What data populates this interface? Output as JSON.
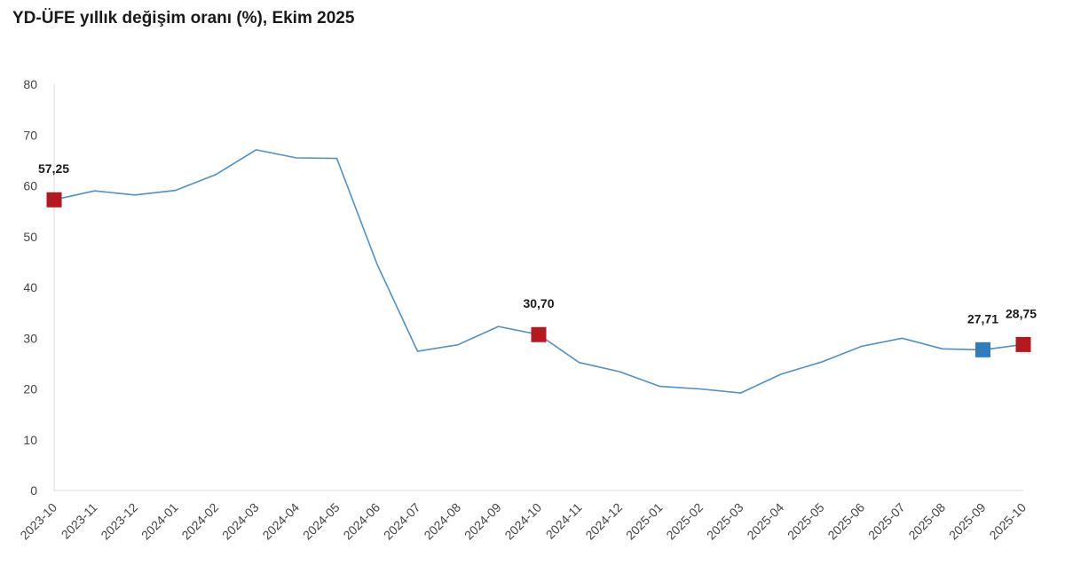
{
  "title": "YD-ÜFE yıllık değişim oranı (%), Ekim 2025",
  "chart_data": {
    "type": "line",
    "title": "YD-ÜFE yıllık değişim oranı (%), Ekim 2025",
    "xlabel": "",
    "ylabel": "",
    "ylim": [
      0,
      80
    ],
    "yticks": [
      0,
      10,
      20,
      30,
      40,
      50,
      60,
      70,
      80
    ],
    "grid": false,
    "legend": "none",
    "categories": [
      "2023-10",
      "2023-11",
      "2023-12",
      "2024-01",
      "2024-02",
      "2024-03",
      "2024-04",
      "2024-05",
      "2024-06",
      "2024-07",
      "2024-08",
      "2024-09",
      "2024-10",
      "2024-11",
      "2024-12",
      "2025-01",
      "2025-02",
      "2025-03",
      "2025-04",
      "2025-05",
      "2025-06",
      "2025-07",
      "2025-08",
      "2025-09",
      "2025-10"
    ],
    "series": [
      {
        "values": [
          57.25,
          59.0,
          58.2,
          59.1,
          62.2,
          67.1,
          65.5,
          65.4,
          44.5,
          27.4,
          28.7,
          32.3,
          30.7,
          25.2,
          23.4,
          20.5,
          20.0,
          19.2,
          22.9,
          25.3,
          28.4,
          30.0,
          27.9,
          27.71,
          28.75
        ],
        "color": "#4f91c8"
      }
    ],
    "markers": [
      {
        "index": 0,
        "label": "57,25",
        "color": "#b5191f"
      },
      {
        "index": 12,
        "label": "30,70",
        "color": "#b5191f"
      },
      {
        "index": 23,
        "label": "27,71",
        "color": "#2e7ebf"
      },
      {
        "index": 24,
        "label": "28,75",
        "color": "#b5191f"
      }
    ]
  }
}
